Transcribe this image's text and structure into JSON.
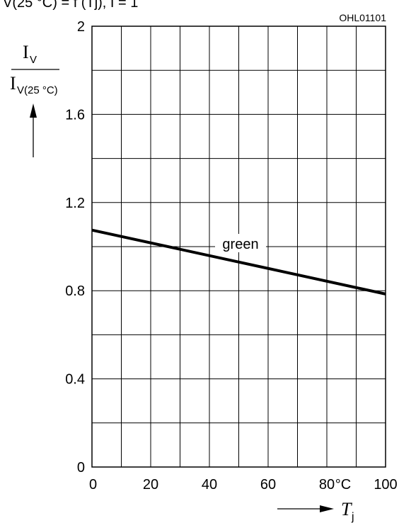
{
  "chart_data": {
    "type": "line",
    "header_text": "V(25 °C) = f (Tj), I = 1",
    "code": "OHL01101",
    "xlim": [
      0,
      100
    ],
    "ylim": [
      0,
      2
    ],
    "x_ticks": [
      "0",
      "20",
      "40",
      "60",
      "80",
      "100"
    ],
    "x_unit": "°C",
    "y_ticks": [
      "0",
      "0.4",
      "0.8",
      "1.2",
      "1.6",
      "2"
    ],
    "grid": true,
    "ylabel": {
      "num_main": "I",
      "num_sub": "V",
      "den_main": "I",
      "den_sub": "V(25 °C)"
    },
    "xlabel": {
      "main": "T",
      "sub": "j"
    },
    "series": [
      {
        "name": "green",
        "x": [
          0,
          100
        ],
        "y": [
          1.075,
          0.785
        ],
        "color": "#000000"
      }
    ]
  }
}
